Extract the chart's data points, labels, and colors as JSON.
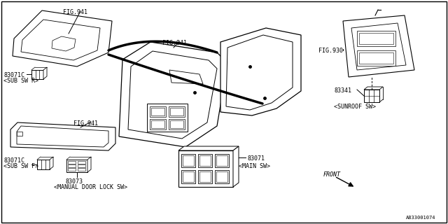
{
  "bg_color": "#ffffff",
  "line_color": "#000000",
  "text_color": "#000000",
  "diagram_id": "A833001074",
  "font_size": 7,
  "small_font": 6,
  "parts": {
    "sub_sw_r": {
      "id": "83071C",
      "label": "<SUB SW R>",
      "fig": "FIG.941"
    },
    "sub_sw_f": {
      "id": "83071C",
      "label": "<SUB SW F>",
      "fig": "FIG.941"
    },
    "main_sw": {
      "id": "83071",
      "label": "<MAIN SW>"
    },
    "door_lock": {
      "id": "83073",
      "label": "<MANUAL DOOR LOCK SW>"
    },
    "sunroof": {
      "id": "83341",
      "label": "<SUNROOF SW>",
      "fig": "FIG.930"
    },
    "front": {
      "label": "FRONT"
    }
  }
}
